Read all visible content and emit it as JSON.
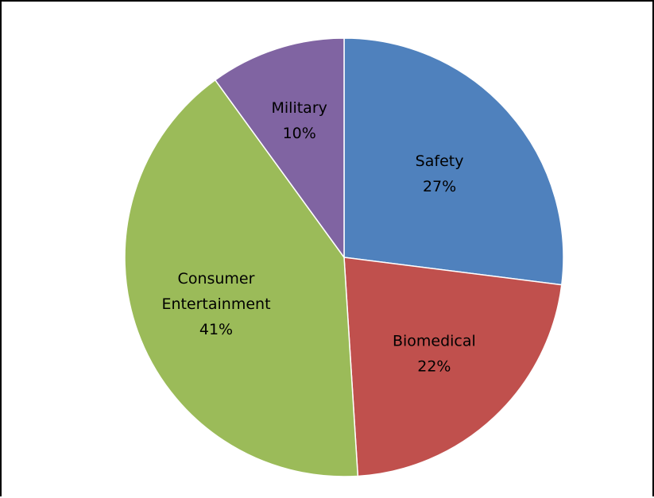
{
  "chart_data": {
    "type": "pie",
    "title": "",
    "slices": [
      {
        "name": "Safety",
        "value": 27,
        "label": "27%",
        "color": "#4F81BD"
      },
      {
        "name": "Biomedical",
        "value": 22,
        "label": "22%",
        "color": "#C0504D"
      },
      {
        "name": "Consumer Entertainment",
        "value": 41,
        "label": "41%",
        "color": "#9BBB59"
      },
      {
        "name": "Military",
        "value": 10,
        "label": "10%",
        "color": "#8064A2"
      }
    ],
    "start": "12 o'clock",
    "direction": "clockwise",
    "legend": "none"
  }
}
